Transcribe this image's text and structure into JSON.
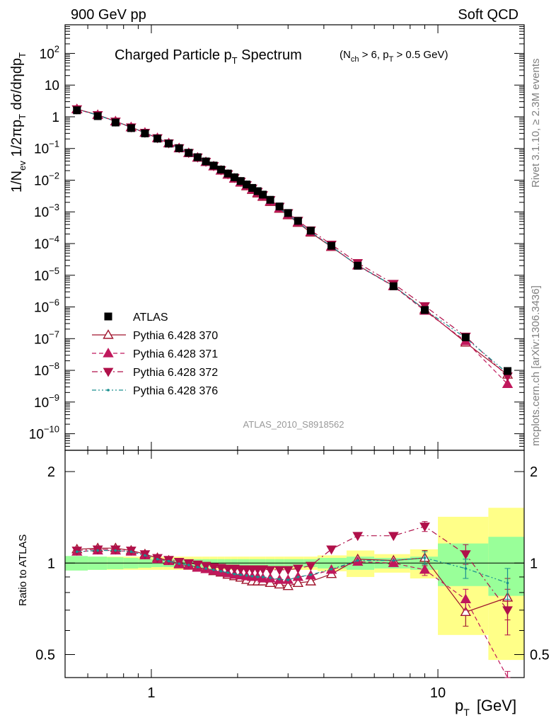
{
  "header": {
    "left": "900 GeV pp",
    "right": "Soft QCD"
  },
  "side_labels": {
    "rivet": "Rivet 3.1.10, ≥ 2.3M events",
    "mcplots": "mcplots.cern.ch [arXiv:1306.3436]"
  },
  "analysis_tag": "ATLAS_2010_S8918562",
  "colors": {
    "atlas": "#000000",
    "p370": "#a0152d",
    "p371": "#c0185c",
    "p372": "#b0104a",
    "p376": "#1a8f8f",
    "band_inner": "#99ff99",
    "band_outer": "#ffff88"
  },
  "chart_data": [
    {
      "type": "scatter",
      "title": "Charged Particle p_T Spectrum",
      "title_main": "Charged Particle p",
      "title_sub": "T",
      "title_main2": " Spectrum",
      "subtitle_parts": [
        "(N",
        "ch",
        " > 6, p",
        "T",
        " > 0.5 GeV)"
      ],
      "ylabel": "1/N_ev 1/2πp_T dσ/dηdp_T",
      "xscale": "log",
      "yscale": "log",
      "xlim": [
        0.5,
        20
      ],
      "ylim": [
        3e-11,
        800
      ],
      "y_ticks": [
        {
          "v": 1e-10,
          "base": "10",
          "exp": "−10"
        },
        {
          "v": 1e-09,
          "base": "10",
          "exp": "−9"
        },
        {
          "v": 1e-08,
          "base": "10",
          "exp": "−8"
        },
        {
          "v": 1e-07,
          "base": "10",
          "exp": "−7"
        },
        {
          "v": 1e-06,
          "base": "10",
          "exp": "−6"
        },
        {
          "v": 1e-05,
          "base": "10",
          "exp": "−5"
        },
        {
          "v": 0.0001,
          "base": "10",
          "exp": "−4"
        },
        {
          "v": 0.001,
          "base": "10",
          "exp": "−3"
        },
        {
          "v": 0.01,
          "base": "10",
          "exp": "−2"
        },
        {
          "v": 0.1,
          "base": "10",
          "exp": "−1"
        },
        {
          "v": 1,
          "base": "1",
          "exp": ""
        },
        {
          "v": 10,
          "base": "10",
          "exp": ""
        },
        {
          "v": 100,
          "base": "10",
          "exp": "2"
        }
      ],
      "x": [
        0.55,
        0.65,
        0.75,
        0.85,
        0.95,
        1.05,
        1.15,
        1.25,
        1.35,
        1.45,
        1.55,
        1.65,
        1.75,
        1.85,
        1.95,
        2.05,
        2.15,
        2.25,
        2.35,
        2.45,
        2.6,
        2.8,
        3.0,
        3.25,
        3.6,
        4.25,
        5.25,
        7.0,
        9.0,
        12.5,
        17.5
      ],
      "series": [
        {
          "name": "ATLAS",
          "marker": "square",
          "values": [
            1.6,
            1.05,
            0.66,
            0.44,
            0.3,
            0.205,
            0.143,
            0.102,
            0.073,
            0.053,
            0.039,
            0.0289,
            0.0216,
            0.0162,
            0.0123,
            0.0094,
            0.0073,
            0.0057,
            0.0045,
            0.0035,
            0.0024,
            0.00148,
            0.00092,
            0.00052,
            0.000255,
            8.5e-05,
            2e-05,
            4.5e-06,
            8e-07,
            1.1e-07,
            9.5e-09
          ]
        },
        {
          "name": "Pythia 6.428 370",
          "marker": "triangle-up-open",
          "line": "solid",
          "values": [
            1.75,
            1.15,
            0.72,
            0.47,
            0.315,
            0.213,
            0.146,
            0.102,
            0.072,
            0.0515,
            0.0372,
            0.0272,
            0.02,
            0.0148,
            0.0111,
            0.0084,
            0.0064,
            0.0049,
            0.0038,
            0.00298,
            0.00205,
            0.00125,
            0.00078,
            0.00045,
            0.000222,
            7.8e-05,
            2.06e-05,
            4.6e-06,
            8.3e-07,
            7.5e-08,
            7.3e-09
          ]
        },
        {
          "name": "Pythia 6.428 371",
          "marker": "triangle-up",
          "line": "dashed",
          "values": [
            1.72,
            1.13,
            0.71,
            0.465,
            0.312,
            0.211,
            0.145,
            0.101,
            0.0715,
            0.0512,
            0.0372,
            0.0273,
            0.0202,
            0.015,
            0.0113,
            0.0086,
            0.0066,
            0.0051,
            0.004,
            0.0031,
            0.00215,
            0.0013,
            0.00081,
            0.00047,
            0.000233,
            8.1e-05,
            2.02e-05,
            4.5e-06,
            7.6e-07,
            8.3e-08,
            3.7e-09
          ]
        },
        {
          "name": "Pythia 6.428 372",
          "marker": "triangle-down",
          "line": "dashdot",
          "values": [
            1.74,
            1.14,
            0.715,
            0.468,
            0.315,
            0.213,
            0.147,
            0.103,
            0.073,
            0.0525,
            0.0382,
            0.028,
            0.0208,
            0.0155,
            0.0118,
            0.009,
            0.007,
            0.0055,
            0.0043,
            0.0034,
            0.00236,
            0.00146,
            0.00092,
            0.00053,
            0.000262,
            9.3e-05,
            2.45e-05,
            5.4e-06,
            1.07e-06,
            1.17e-07,
            6.5e-09
          ]
        },
        {
          "name": "Pythia 6.428 376",
          "marker": "dot",
          "line": "dashdotdot",
          "values": [
            1.72,
            1.13,
            0.71,
            0.465,
            0.312,
            0.211,
            0.145,
            0.101,
            0.0715,
            0.0512,
            0.0372,
            0.0273,
            0.0202,
            0.015,
            0.0113,
            0.0086,
            0.0066,
            0.0051,
            0.004,
            0.0031,
            0.00215,
            0.0013,
            0.00081,
            0.00047,
            0.000233,
            8.1e-05,
            2.04e-05,
            4.6e-06,
            8.3e-07,
            1.05e-07,
            8.1e-09
          ]
        }
      ]
    },
    {
      "type": "scatter",
      "ylabel": "Ratio to ATLAS",
      "xlabel_main": "p",
      "xlabel_sub": "T",
      "xlabel_unit": "[GeV]",
      "xscale": "log",
      "yscale": "log",
      "xlim": [
        0.5,
        20
      ],
      "ylim": [
        0.42,
        2.35
      ],
      "x_ticks": [
        {
          "v": 1,
          "label": "1"
        },
        {
          "v": 10,
          "label": "10"
        }
      ],
      "y_ticks": [
        {
          "v": 0.5,
          "label": "0.5"
        },
        {
          "v": 1,
          "label": "1"
        },
        {
          "v": 2,
          "label": "2"
        }
      ],
      "x": [
        0.55,
        0.65,
        0.75,
        0.85,
        0.95,
        1.05,
        1.15,
        1.25,
        1.35,
        1.45,
        1.55,
        1.65,
        1.75,
        1.85,
        1.95,
        2.05,
        2.15,
        2.25,
        2.35,
        2.45,
        2.6,
        2.8,
        3.0,
        3.25,
        3.6,
        4.25,
        5.25,
        7.0,
        9.0,
        12.5,
        17.5
      ],
      "bin_edges": [
        0.5,
        0.6,
        0.7,
        0.8,
        0.9,
        1.0,
        1.1,
        1.2,
        1.3,
        1.4,
        1.5,
        1.6,
        1.7,
        1.8,
        1.9,
        2.0,
        2.1,
        2.2,
        2.3,
        2.4,
        2.5,
        2.7,
        2.9,
        3.1,
        3.4,
        3.8,
        4.8,
        6.0,
        8.0,
        10.0,
        15.0,
        20.0
      ],
      "band_inner": [
        0.055,
        0.05,
        0.045,
        0.04,
        0.035,
        0.03,
        0.03,
        0.03,
        0.03,
        0.03,
        0.03,
        0.03,
        0.03,
        0.03,
        0.03,
        0.03,
        0.03,
        0.03,
        0.03,
        0.03,
        0.03,
        0.03,
        0.03,
        0.03,
        0.03,
        0.04,
        0.05,
        0.04,
        0.05,
        0.16,
        0.22
      ],
      "band_outer": [
        0.05,
        0.05,
        0.05,
        0.05,
        0.05,
        0.05,
        0.05,
        0.05,
        0.05,
        0.05,
        0.05,
        0.05,
        0.05,
        0.05,
        0.05,
        0.05,
        0.05,
        0.05,
        0.05,
        0.05,
        0.05,
        0.05,
        0.05,
        0.05,
        0.05,
        0.06,
        0.1,
        0.07,
        0.11,
        0.42,
        0.52
      ],
      "series": [
        {
          "name": "Pythia 6.428 370",
          "marker": "triangle-up-open",
          "line": "solid",
          "values": [
            1.11,
            1.12,
            1.12,
            1.1,
            1.07,
            1.04,
            1.02,
            0.995,
            0.985,
            0.97,
            0.955,
            0.94,
            0.93,
            0.915,
            0.905,
            0.895,
            0.88,
            0.87,
            0.87,
            0.87,
            0.86,
            0.85,
            0.84,
            0.86,
            0.87,
            0.92,
            1.03,
            1.02,
            1.04,
            0.69,
            0.77
          ],
          "errors": [
            0,
            0,
            0,
            0,
            0,
            0,
            0,
            0,
            0,
            0,
            0,
            0,
            0,
            0,
            0,
            0,
            0,
            0,
            0,
            0,
            0,
            0,
            0,
            0,
            0,
            0,
            0,
            0,
            0.06,
            0.07,
            0.12
          ]
        },
        {
          "name": "Pythia 6.428 371",
          "marker": "triangle-up",
          "line": "dashed",
          "values": [
            1.09,
            1.1,
            1.1,
            1.09,
            1.06,
            1.03,
            1.015,
            0.99,
            0.98,
            0.965,
            0.955,
            0.945,
            0.935,
            0.925,
            0.915,
            0.91,
            0.905,
            0.9,
            0.9,
            0.89,
            0.89,
            0.88,
            0.88,
            0.9,
            0.91,
            0.95,
            1.01,
            1.0,
            0.95,
            0.76,
            0.39
          ],
          "errors": [
            0,
            0,
            0,
            0,
            0,
            0,
            0,
            0,
            0,
            0,
            0,
            0,
            0,
            0,
            0,
            0,
            0,
            0,
            0,
            0,
            0,
            0,
            0,
            0,
            0,
            0,
            0,
            0,
            0.04,
            0.06,
            0.05
          ]
        },
        {
          "name": "Pythia 6.428 372",
          "marker": "triangle-down",
          "line": "dashdot",
          "values": [
            1.1,
            1.11,
            1.11,
            1.1,
            1.07,
            1.04,
            1.025,
            1.01,
            1.0,
            0.99,
            0.98,
            0.97,
            0.965,
            0.96,
            0.96,
            0.955,
            0.955,
            0.955,
            0.955,
            0.955,
            0.95,
            0.95,
            0.95,
            0.96,
            0.98,
            1.11,
            1.23,
            1.23,
            1.32,
            1.07,
            0.7
          ],
          "errors": [
            0,
            0,
            0,
            0,
            0,
            0,
            0,
            0,
            0,
            0,
            0,
            0,
            0,
            0,
            0,
            0,
            0,
            0,
            0,
            0,
            0,
            0,
            0,
            0,
            0,
            0,
            0,
            0,
            0.05,
            0.08,
            0.12
          ]
        },
        {
          "name": "Pythia 6.428 376",
          "marker": "dot",
          "line": "dashdotdot",
          "values": [
            1.09,
            1.1,
            1.1,
            1.09,
            1.06,
            1.03,
            1.015,
            0.995,
            0.985,
            0.97,
            0.96,
            0.95,
            0.94,
            0.93,
            0.92,
            0.915,
            0.91,
            0.905,
            0.9,
            0.9,
            0.895,
            0.885,
            0.88,
            0.9,
            0.915,
            0.955,
            1.02,
            1.02,
            1.04,
            0.96,
            0.86
          ],
          "errors": [
            0,
            0,
            0,
            0,
            0,
            0,
            0,
            0,
            0,
            0,
            0,
            0,
            0,
            0,
            0,
            0,
            0,
            0,
            0,
            0,
            0,
            0,
            0,
            0,
            0,
            0,
            0,
            0,
            0.05,
            0.07,
            0.1
          ]
        }
      ]
    }
  ],
  "legend": [
    {
      "label": "ATLAS",
      "marker": "square"
    },
    {
      "label": "Pythia 6.428 370",
      "marker": "triangle-up-open",
      "line": "solid"
    },
    {
      "label": "Pythia 6.428 371",
      "marker": "triangle-up",
      "line": "dashed"
    },
    {
      "label": "Pythia 6.428 372",
      "marker": "triangle-down",
      "line": "dashdot"
    },
    {
      "label": "Pythia 6.428 376",
      "marker": "dot",
      "line": "dashdotdot"
    }
  ]
}
